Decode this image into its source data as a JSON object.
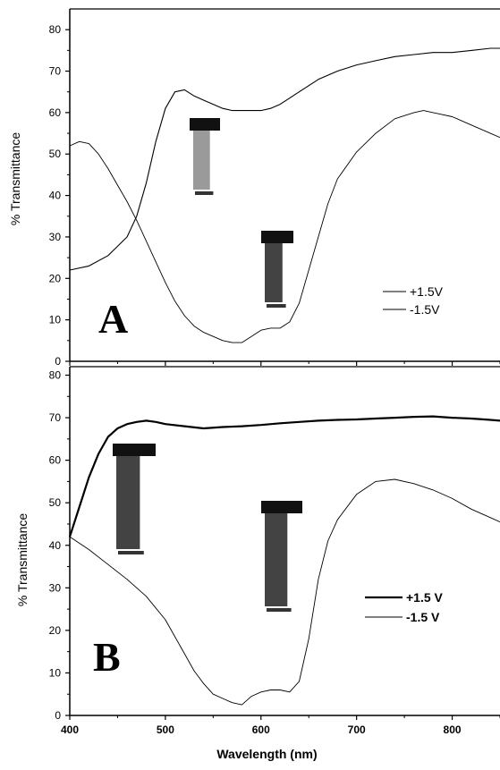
{
  "chart_data": [
    {
      "type": "line",
      "panel_label": "A",
      "xlim": [
        400,
        850
      ],
      "ylim": [
        0,
        85
      ],
      "yticks": [
        0,
        10,
        20,
        30,
        40,
        50,
        60,
        70,
        80
      ],
      "ylabel": "% Transmittance",
      "xlabel": "",
      "legend_position": "bottom-right",
      "series": [
        {
          "name": "+1.5V",
          "x": [
            400,
            420,
            440,
            460,
            470,
            480,
            490,
            500,
            510,
            520,
            530,
            540,
            550,
            560,
            570,
            580,
            590,
            600,
            610,
            620,
            630,
            640,
            660,
            680,
            700,
            720,
            740,
            760,
            780,
            800,
            820,
            840,
            850
          ],
          "y": [
            22,
            23,
            25.5,
            30,
            35,
            43,
            53,
            61,
            65,
            65.5,
            64,
            63,
            62,
            61,
            60.5,
            60.5,
            60.5,
            60.5,
            61,
            62,
            63.5,
            65,
            68,
            70,
            71.5,
            72.5,
            73.5,
            74,
            74.5,
            74.5,
            75,
            75.5,
            75.5
          ],
          "stroke_width": 1.1
        },
        {
          "name": "-1.5V",
          "x": [
            400,
            410,
            420,
            430,
            440,
            450,
            460,
            470,
            480,
            490,
            500,
            510,
            520,
            530,
            540,
            550,
            560,
            570,
            580,
            590,
            600,
            610,
            620,
            630,
            640,
            650,
            660,
            670,
            680,
            700,
            720,
            740,
            760,
            770,
            780,
            800,
            820,
            840,
            850
          ],
          "y": [
            52,
            53,
            52.5,
            50,
            46.5,
            42.5,
            38.5,
            34,
            29,
            24,
            19,
            14.5,
            11,
            8.5,
            7,
            6,
            5,
            4.5,
            4.5,
            6,
            7.5,
            8,
            8,
            9.5,
            14,
            22,
            30,
            38,
            44,
            50.5,
            55,
            58.5,
            60,
            60.5,
            60,
            59,
            57,
            55,
            54
          ],
          "stroke_width": 0.9
        }
      ]
    },
    {
      "type": "line",
      "panel_label": "B",
      "xlim": [
        400,
        850
      ],
      "ylim": [
        0,
        82
      ],
      "xticks": [
        400,
        500,
        600,
        700,
        800
      ],
      "yticks": [
        0,
        10,
        20,
        30,
        40,
        50,
        60,
        70,
        80
      ],
      "ylabel": "% Transmittance",
      "xlabel": "Wavelength (nm)",
      "legend_position": "bottom-right",
      "series": [
        {
          "name": "+1.5 V",
          "x": [
            400,
            410,
            420,
            430,
            440,
            450,
            460,
            470,
            480,
            490,
            500,
            520,
            540,
            560,
            580,
            600,
            620,
            640,
            660,
            680,
            700,
            720,
            740,
            760,
            780,
            800,
            820,
            840,
            850
          ],
          "y": [
            42,
            49,
            56,
            61.5,
            65.5,
            67.5,
            68.5,
            69,
            69.3,
            69,
            68.5,
            68,
            67.5,
            67.8,
            68,
            68.3,
            68.7,
            69,
            69.3,
            69.5,
            69.6,
            69.8,
            70,
            70.2,
            70.3,
            70,
            69.8,
            69.5,
            69.3
          ],
          "stroke_width": 2.2
        },
        {
          "name": "-1.5 V",
          "x": [
            400,
            420,
            440,
            460,
            480,
            500,
            520,
            530,
            540,
            550,
            560,
            570,
            580,
            590,
            600,
            610,
            620,
            630,
            640,
            650,
            660,
            670,
            680,
            700,
            720,
            740,
            760,
            780,
            800,
            820,
            840,
            850
          ],
          "y": [
            42,
            39,
            35.5,
            32,
            28,
            22.5,
            14.5,
            10.5,
            7.5,
            5,
            4,
            3,
            2.5,
            4.5,
            5.5,
            6,
            6,
            5.5,
            8,
            18,
            32,
            41,
            46,
            52,
            55,
            55.5,
            54.5,
            53,
            51,
            48.5,
            46.5,
            45.5
          ],
          "stroke_width": 0.9
        }
      ]
    }
  ]
}
